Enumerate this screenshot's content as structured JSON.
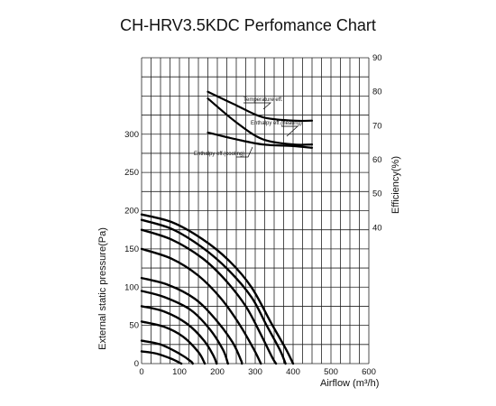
{
  "chart_data": {
    "type": "line",
    "title": "CH-HRV3.5KDC Perfomance Chart",
    "xlabel": "Airflow (m³/h)",
    "ylabel": "External static pressure(Pa)",
    "y2label": "Efficiency(%)",
    "xlim": [
      0,
      600
    ],
    "ylim": [
      0,
      400
    ],
    "y2lim": [
      0,
      90
    ],
    "x_ticks": [
      0,
      100,
      200,
      300,
      400,
      500,
      600
    ],
    "y_ticks": [
      0,
      50,
      100,
      150,
      200,
      250,
      300
    ],
    "y2_ticks": [
      40,
      50,
      60,
      70,
      80,
      90
    ],
    "grid": true,
    "pressure_curves": [
      [
        [
          0,
          195
        ],
        [
          80,
          185
        ],
        [
          160,
          163
        ],
        [
          230,
          135
        ],
        [
          290,
          100
        ],
        [
          340,
          55
        ],
        [
          380,
          20
        ],
        [
          400,
          0
        ]
      ],
      [
        [
          0,
          188
        ],
        [
          80,
          176
        ],
        [
          160,
          152
        ],
        [
          230,
          122
        ],
        [
          290,
          87
        ],
        [
          330,
          50
        ],
        [
          365,
          18
        ],
        [
          380,
          0
        ]
      ],
      [
        [
          0,
          175
        ],
        [
          80,
          162
        ],
        [
          160,
          138
        ],
        [
          220,
          110
        ],
        [
          275,
          75
        ],
        [
          315,
          38
        ],
        [
          345,
          8
        ],
        [
          355,
          0
        ]
      ],
      [
        [
          0,
          150
        ],
        [
          80,
          137
        ],
        [
          150,
          115
        ],
        [
          210,
          85
        ],
        [
          260,
          50
        ],
        [
          295,
          20
        ],
        [
          315,
          0
        ]
      ],
      [
        [
          0,
          112
        ],
        [
          70,
          103
        ],
        [
          140,
          85
        ],
        [
          195,
          58
        ],
        [
          240,
          28
        ],
        [
          262,
          5
        ],
        [
          265,
          0
        ]
      ],
      [
        [
          0,
          95
        ],
        [
          60,
          87
        ],
        [
          130,
          70
        ],
        [
          180,
          45
        ],
        [
          215,
          18
        ],
        [
          228,
          0
        ]
      ],
      [
        [
          0,
          75
        ],
        [
          60,
          68
        ],
        [
          120,
          52
        ],
        [
          165,
          30
        ],
        [
          190,
          10
        ],
        [
          198,
          0
        ]
      ],
      [
        [
          0,
          55
        ],
        [
          60,
          48
        ],
        [
          110,
          35
        ],
        [
          150,
          15
        ],
        [
          167,
          0
        ]
      ],
      [
        [
          0,
          30
        ],
        [
          50,
          25
        ],
        [
          100,
          13
        ],
        [
          130,
          3
        ],
        [
          135,
          0
        ]
      ],
      [
        [
          0,
          16
        ],
        [
          40,
          13
        ],
        [
          80,
          6
        ],
        [
          105,
          0
        ]
      ]
    ],
    "efficiency_curves": [
      {
        "name": "Temperature eff.",
        "points": [
          [
            175,
            80
          ],
          [
            250,
            76
          ],
          [
            320,
            72.5
          ],
          [
            400,
            71.5
          ],
          [
            450,
            71.5
          ]
        ]
      },
      {
        "name": "Enthalpy eff.(heating)",
        "points": [
          [
            175,
            78
          ],
          [
            250,
            71
          ],
          [
            320,
            66
          ],
          [
            400,
            64.5
          ],
          [
            450,
            64.5
          ]
        ]
      },
      {
        "name": "Enthalpy eff.(cooling)",
        "points": [
          [
            175,
            68
          ],
          [
            250,
            66
          ],
          [
            320,
            64.5
          ],
          [
            400,
            64
          ],
          [
            450,
            63.5
          ]
        ]
      }
    ],
    "annotations": [
      "Temperature eff.",
      "Enthalpy eff.(heating)",
      "Enthalpy eff.(cooling)"
    ]
  }
}
